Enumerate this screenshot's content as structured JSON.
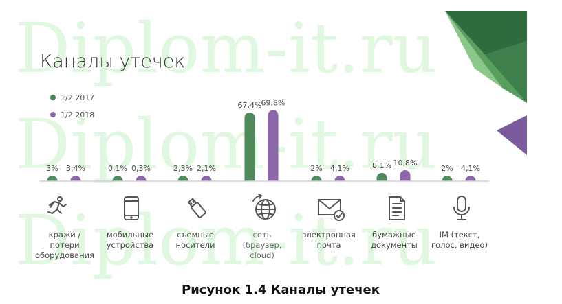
{
  "watermark": "Diplom-it.ru",
  "chart_data": {
    "type": "bar",
    "title": "Каналы утечек",
    "categories": [
      [
        "кражи /",
        "потери",
        "оборудования"
      ],
      [
        "мобильные",
        "устройства"
      ],
      [
        "съемные",
        "носители"
      ],
      [
        "сеть",
        "(браузер,",
        "cloud)"
      ],
      [
        "электронная",
        "почта"
      ],
      [
        "бумажные",
        "документы"
      ],
      [
        "IM (текст,",
        "голос, видео)"
      ]
    ],
    "icons": [
      "running-person-icon",
      "smartphone-icon",
      "usb-drive-icon",
      "globe-network-icon",
      "envelope-icon",
      "paper-document-icon",
      "microphone-icon"
    ],
    "series": [
      {
        "name": "1/2 2017",
        "color": "#4e8a5c",
        "values": [
          3,
          0.1,
          2.3,
          67.4,
          2,
          8.1,
          2
        ],
        "labels": [
          "3%",
          "0,1%",
          "2,3%",
          "67,4%",
          "2%",
          "8,1%",
          "2%"
        ]
      },
      {
        "name": "1/2 2018",
        "color": "#8c66a8",
        "values": [
          3.4,
          0.3,
          2.1,
          69.8,
          4.1,
          10.8,
          4.1
        ],
        "labels": [
          "3,4%",
          "0,3%",
          "2,1%",
          "69,8%",
          "4,1%",
          "10,8%",
          "4,1%"
        ]
      }
    ],
    "legend_position": "top-left",
    "grid": false
  },
  "caption": "Рисунок 1.4 Каналы утечек",
  "decor_colors": {
    "dark": "#2f6b3d",
    "mid": "#5a9f5e",
    "light": "#8cc78a",
    "purple": "#7a5a9a"
  }
}
